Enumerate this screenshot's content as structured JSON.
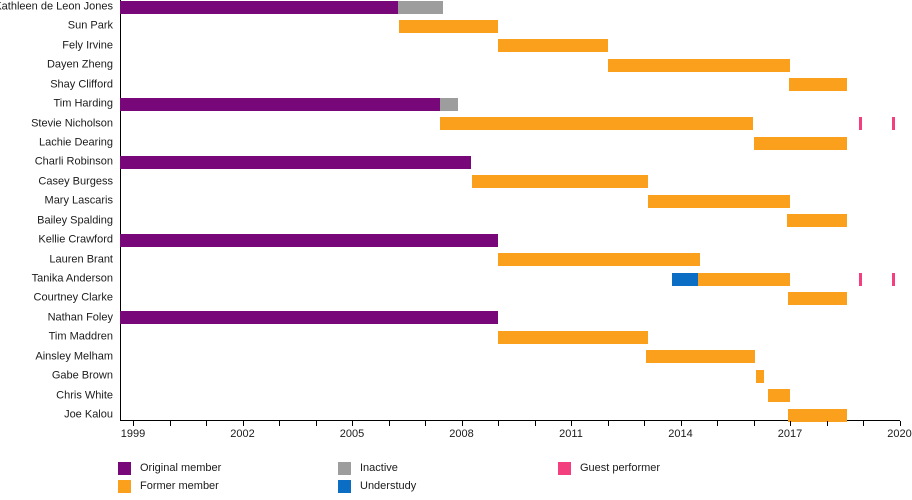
{
  "colors": {
    "original": "#78087a",
    "former": "#fba01d",
    "inactive": "#9d9d9d",
    "understudy": "#0b6dc4",
    "guest": "#f43f7e",
    "axis": "#000000"
  },
  "legend": {
    "items": [
      {
        "label": "Original member",
        "type": "original",
        "col": 0,
        "row": 0
      },
      {
        "label": "Former member",
        "type": "former",
        "col": 0,
        "row": 1
      },
      {
        "label": "Inactive",
        "type": "inactive",
        "col": 1,
        "row": 0
      },
      {
        "label": "Understudy",
        "type": "understudy",
        "col": 1,
        "row": 1
      },
      {
        "label": "Guest performer",
        "type": "guest",
        "col": 2,
        "row": 0
      }
    ]
  },
  "chart_data": {
    "type": "timeline",
    "title": "",
    "x_axis": {
      "start": 1998.65,
      "end": 2020.0,
      "labeled_ticks": [
        1999,
        2002,
        2005,
        2008,
        2011,
        2014,
        2017,
        2020
      ],
      "minor_tick_interval_years": 1,
      "grid": false
    },
    "legend_position": "bottom",
    "members": [
      {
        "name": "Kathleen de Leon Jones",
        "segments": [
          {
            "type": "original",
            "start": 1998.65,
            "end": 2006.25
          },
          {
            "type": "inactive",
            "start": 2006.25,
            "end": 2007.5
          }
        ]
      },
      {
        "name": "Sun Park",
        "segments": [
          {
            "type": "former",
            "start": 2006.3,
            "end": 2009.0
          }
        ]
      },
      {
        "name": "Fely Irvine",
        "segments": [
          {
            "type": "former",
            "start": 2009.0,
            "end": 2012.0
          }
        ]
      },
      {
        "name": "Dayen Zheng",
        "segments": [
          {
            "type": "former",
            "start": 2012.0,
            "end": 2017.0
          }
        ]
      },
      {
        "name": "Shay Clifford",
        "segments": [
          {
            "type": "former",
            "start": 2016.97,
            "end": 2018.55
          }
        ]
      },
      {
        "name": "Tim Harding",
        "segments": [
          {
            "type": "original",
            "start": 1998.65,
            "end": 2007.4
          },
          {
            "type": "inactive",
            "start": 2007.4,
            "end": 2007.9
          }
        ]
      },
      {
        "name": "Stevie Nicholson",
        "segments": [
          {
            "type": "former",
            "start": 2007.4,
            "end": 2016.0
          }
        ],
        "guest_marks": [
          2018.92,
          2019.84
        ]
      },
      {
        "name": "Lachie Dearing",
        "segments": [
          {
            "type": "former",
            "start": 2016.0,
            "end": 2018.56
          }
        ]
      },
      {
        "name": "Charli Robinson",
        "segments": [
          {
            "type": "original",
            "start": 1998.65,
            "end": 2008.25
          }
        ]
      },
      {
        "name": "Casey Burgess",
        "segments": [
          {
            "type": "former",
            "start": 2008.3,
            "end": 2013.1
          }
        ]
      },
      {
        "name": "Mary Lascaris",
        "segments": [
          {
            "type": "former",
            "start": 2013.1,
            "end": 2017.0
          }
        ]
      },
      {
        "name": "Bailey Spalding",
        "segments": [
          {
            "type": "former",
            "start": 2016.92,
            "end": 2018.55
          }
        ]
      },
      {
        "name": "Kellie Crawford",
        "segments": [
          {
            "type": "original",
            "start": 1998.65,
            "end": 2009.0
          }
        ]
      },
      {
        "name": "Lauren Brant",
        "segments": [
          {
            "type": "former",
            "start": 2009.0,
            "end": 2014.53
          }
        ]
      },
      {
        "name": "Tanika Anderson",
        "segments": [
          {
            "type": "understudy",
            "start": 2013.77,
            "end": 2014.48
          },
          {
            "type": "former",
            "start": 2014.48,
            "end": 2017.0
          }
        ],
        "guest_marks": [
          2018.92,
          2019.84
        ]
      },
      {
        "name": "Courtney Clarke",
        "segments": [
          {
            "type": "former",
            "start": 2016.95,
            "end": 2018.55
          }
        ]
      },
      {
        "name": "Nathan Foley",
        "segments": [
          {
            "type": "original",
            "start": 1998.65,
            "end": 2009.0
          }
        ]
      },
      {
        "name": "Tim Maddren",
        "segments": [
          {
            "type": "former",
            "start": 2009.0,
            "end": 2013.1
          }
        ]
      },
      {
        "name": "Ainsley Melham",
        "segments": [
          {
            "type": "former",
            "start": 2013.05,
            "end": 2016.05
          }
        ]
      },
      {
        "name": "Gabe Brown",
        "segments": [
          {
            "type": "former",
            "start": 2016.07,
            "end": 2016.3
          }
        ]
      },
      {
        "name": "Chris White",
        "segments": [
          {
            "type": "former",
            "start": 2016.4,
            "end": 2017.0
          }
        ]
      },
      {
        "name": "Joe Kalou",
        "segments": [
          {
            "type": "former",
            "start": 2016.95,
            "end": 2018.55
          }
        ]
      }
    ]
  }
}
